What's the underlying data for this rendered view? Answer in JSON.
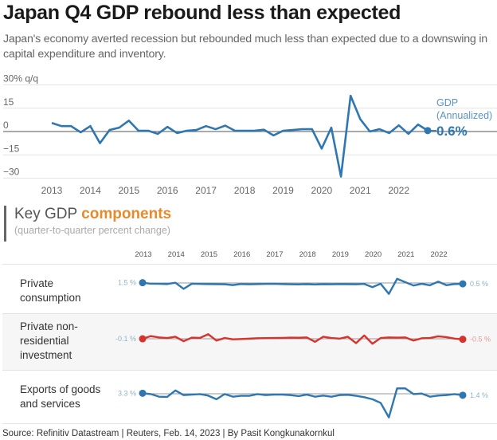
{
  "header": {
    "title": "Japan Q4 GDP rebound less than expected",
    "subtitle": "Japan's economy averted recession but rebounded much less than expected due to a downswing in capital expenditure and inventory."
  },
  "chart_data": [
    {
      "type": "line",
      "title": "GDP (Annualized)",
      "ylabel": "% q/q",
      "ylim": [
        -30,
        30
      ],
      "yticks": [
        30,
        15,
        0,
        -15,
        -30
      ],
      "ytick_labels": [
        "30% q/q",
        "15",
        "0",
        "−15",
        "−30"
      ],
      "xticks": [
        "2013",
        "2014",
        "2015",
        "2016",
        "2017",
        "2018",
        "2019",
        "2020",
        "2021",
        "2022"
      ],
      "x_start": "2013 Q1",
      "x_end": "2022 Q4",
      "series": [
        {
          "name": "GDP (Annualized)",
          "color": "#2f77b0",
          "values": [
            5.5,
            3.5,
            3.5,
            -0.5,
            3.5,
            -7.5,
            1.0,
            2.5,
            7.0,
            0.5,
            0.5,
            -1.5,
            3.0,
            -1.0,
            0.5,
            1.0,
            3.5,
            1.5,
            3.8,
            0.5,
            0.5,
            0.5,
            1.2,
            -2.5,
            0.5,
            1.0,
            1.5,
            1.5,
            -11.0,
            2.5,
            -29.0,
            23.0,
            8.0,
            0.0,
            1.5,
            -1.0,
            4.0,
            -1.5,
            4.5,
            0.6
          ]
        }
      ],
      "end_label": {
        "series_label_line1": "GDP",
        "series_label_line2": "(Annualized)",
        "value": "0.6%"
      }
    },
    {
      "type": "line",
      "title": "Key GDP components",
      "subtitle": "(quarter-to-quarter percent change)",
      "xticks": [
        "2013",
        "2014",
        "2015",
        "2016",
        "2017",
        "2018",
        "2019",
        "2020",
        "2021",
        "2022"
      ],
      "x_start": "2013 Q1",
      "x_end": "2022 Q4",
      "series": [
        {
          "name": "Private consumption",
          "color": "#2f77b0",
          "start_label": "1.5 %",
          "end_label": "0.5 %",
          "values": [
            1.5,
            0.6,
            0.5,
            0.3,
            1.5,
            -4.0,
            0.6,
            0.4,
            0.3,
            0.2,
            0.1,
            -0.6,
            0.3,
            0.1,
            0.3,
            0.4,
            0.5,
            0.3,
            0.1,
            0.0,
            0.2,
            -0.1,
            0.2,
            0.1,
            0.3,
            0.2,
            0.1,
            0.4,
            -2.5,
            0.6,
            -8.5,
            5.0,
            2.0,
            -1.0,
            0.5,
            -0.8,
            2.5,
            -0.7,
            0.3,
            0.5
          ]
        },
        {
          "name": "Private non-residential investment",
          "color": "#d7322c",
          "start_label": "-0.1 %",
          "end_label": "-0.5 %",
          "values": [
            -0.1,
            2.0,
            1.0,
            0.5,
            1.5,
            -2.0,
            0.8,
            0.6,
            3.5,
            -1.5,
            0.5,
            -0.5,
            -0.3,
            0.0,
            0.3,
            0.4,
            0.5,
            0.6,
            0.8,
            0.7,
            1.0,
            -2.5,
            1.5,
            0.5,
            0.0,
            1.5,
            -3.5,
            2.5,
            -4.0,
            0.5,
            1.0,
            0.8,
            1.0,
            -1.5,
            0.3,
            0.5,
            1.8,
            1.2,
            0.0,
            -0.5
          ]
        },
        {
          "name": "Exports of goods and services",
          "color": "#2f77b0",
          "start_label": "3.3 %",
          "end_label": "1.4 %",
          "values": [
            3.3,
            2.5,
            0.0,
            -0.2,
            6.0,
            1.5,
            2.0,
            2.5,
            1.0,
            -2.5,
            2.5,
            0.0,
            0.8,
            0.8,
            2.5,
            1.5,
            2.0,
            2.0,
            1.5,
            0.5,
            2.0,
            0.0,
            1.0,
            0.0,
            1.5,
            1.8,
            0.8,
            -0.5,
            -2.5,
            -6.0,
            -20.0,
            8.0,
            8.0,
            2.5,
            3.0,
            0.0,
            1.0,
            1.5,
            2.5,
            1.4
          ]
        }
      ]
    }
  ],
  "components": {
    "title_plain": "Key GDP ",
    "title_accent": "components",
    "subtitle": "(quarter-to-quarter percent change)",
    "rows": [
      {
        "label_lines": [
          "Private",
          "consumption"
        ]
      },
      {
        "label_lines": [
          "Private non-",
          "residential",
          "investment"
        ]
      },
      {
        "label_lines": [
          "Exports of goods",
          "and services"
        ]
      }
    ]
  },
  "footer": {
    "source": "Source: Refinitiv Datastream | Reuters, Feb. 14, 2023 | By Pasit Kongkunakornkul"
  },
  "colors": {
    "accent_orange": "#e8892b",
    "series_blue": "#2f77b0",
    "series_red": "#d7322c"
  }
}
